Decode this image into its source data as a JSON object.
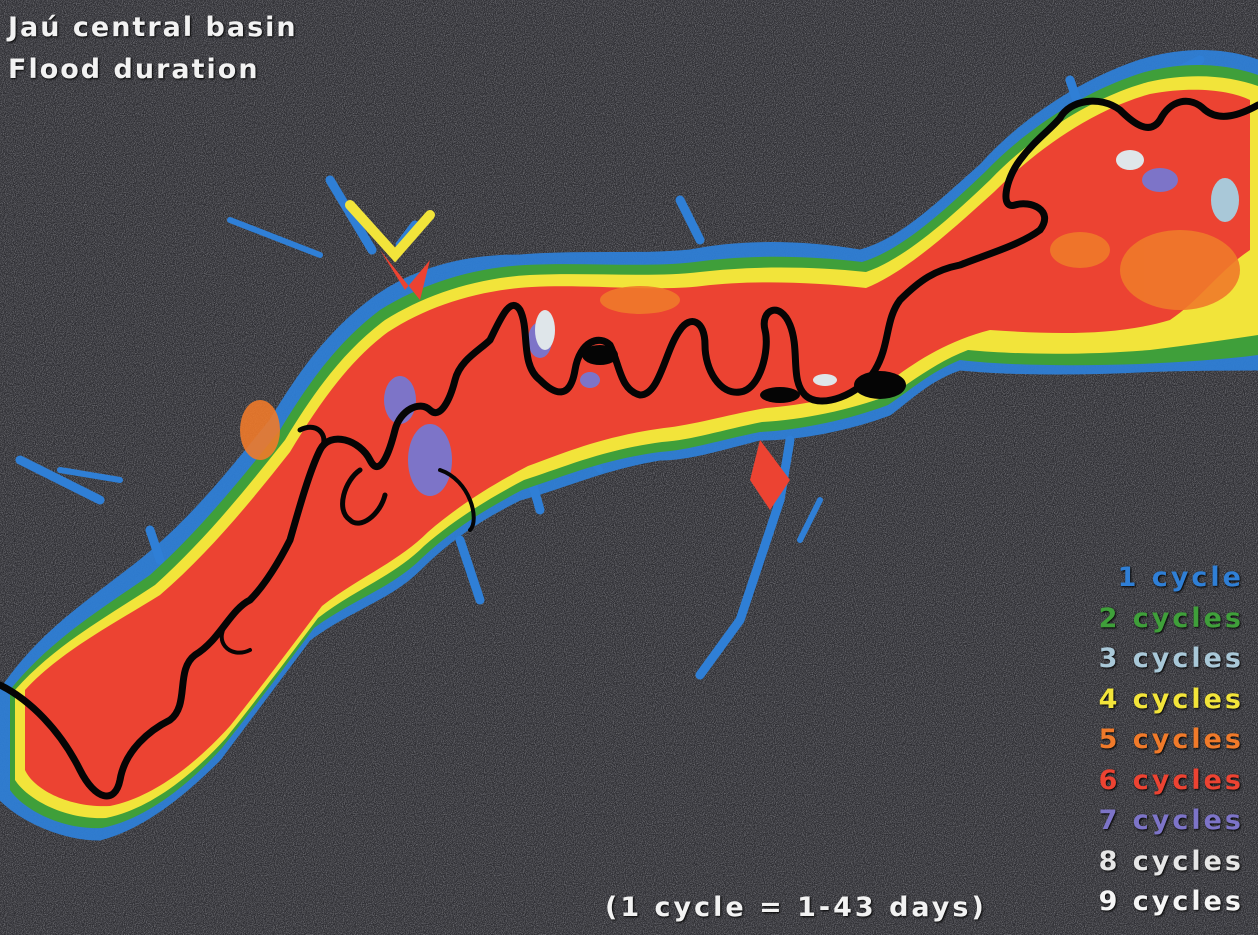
{
  "title_line1": "Jaú central basin",
  "title_line2": "Flood duration",
  "note": "(1 cycle = 1-43 days)",
  "legend": [
    {
      "label": "1 cycle",
      "color": "#2f7fd6"
    },
    {
      "label": "2 cycles",
      "color": "#3f9f3a"
    },
    {
      "label": "3 cycles",
      "color": "#a9c8d8"
    },
    {
      "label": "4 cycles",
      "color": "#f2e43a"
    },
    {
      "label": "5 cycles",
      "color": "#f07a2a"
    },
    {
      "label": "6 cycles",
      "color": "#ec4332"
    },
    {
      "label": "7 cycles",
      "color": "#7d74c8"
    },
    {
      "label": "8 cycles",
      "color": "#e6e6e6"
    },
    {
      "label": "9 cycles",
      "color": "#f5f5f5"
    }
  ],
  "colors": {
    "background": "#2e2e33",
    "river": "#050505"
  }
}
